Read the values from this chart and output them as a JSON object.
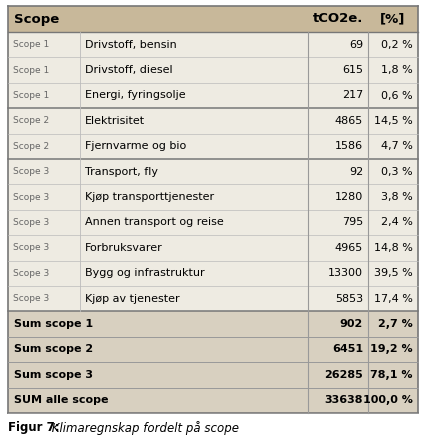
{
  "col_headers": [
    "Scope",
    "",
    "tCO2e.",
    "[%]"
  ],
  "rows": [
    {
      "scope": "Scope 1",
      "desc": "Drivstoff, bensin",
      "tco2e": "69",
      "pct": "0,2 %",
      "bold": false,
      "bg": "light"
    },
    {
      "scope": "Scope 1",
      "desc": "Drivstoff, diesel",
      "tco2e": "615",
      "pct": "1,8 %",
      "bold": false,
      "bg": "light"
    },
    {
      "scope": "Scope 1",
      "desc": "Energi, fyringsolje",
      "tco2e": "217",
      "pct": "0,6 %",
      "bold": false,
      "bg": "light"
    },
    {
      "scope": "Scope 2",
      "desc": "Elektrisitet",
      "tco2e": "4865",
      "pct": "14,5 %",
      "bold": false,
      "bg": "light"
    },
    {
      "scope": "Scope 2",
      "desc": "Fjernvarme og bio",
      "tco2e": "1586",
      "pct": "4,7 %",
      "bold": false,
      "bg": "light"
    },
    {
      "scope": "Scope 3",
      "desc": "Transport, fly",
      "tco2e": "92",
      "pct": "0,3 %",
      "bold": false,
      "bg": "light"
    },
    {
      "scope": "Scope 3",
      "desc": "Kjøp transporttjenester",
      "tco2e": "1280",
      "pct": "3,8 %",
      "bold": false,
      "bg": "light"
    },
    {
      "scope": "Scope 3",
      "desc": "Annen transport og reise",
      "tco2e": "795",
      "pct": "2,4 %",
      "bold": false,
      "bg": "light"
    },
    {
      "scope": "Scope 3",
      "desc": "Forbruksvarer",
      "tco2e": "4965",
      "pct": "14,8 %",
      "bold": false,
      "bg": "light"
    },
    {
      "scope": "Scope 3",
      "desc": "Bygg og infrastruktur",
      "tco2e": "13300",
      "pct": "39,5 %",
      "bold": false,
      "bg": "light"
    },
    {
      "scope": "Scope 3",
      "desc": "Kjøp av tjenester",
      "tco2e": "5853",
      "pct": "17,4 %",
      "bold": false,
      "bg": "light"
    },
    {
      "scope": "",
      "desc": "Sum scope 1",
      "tco2e": "902",
      "pct": "2,7 %",
      "bold": true,
      "bg": "dark"
    },
    {
      "scope": "",
      "desc": "Sum scope 2",
      "tco2e": "6451",
      "pct": "19,2 %",
      "bold": true,
      "bg": "dark"
    },
    {
      "scope": "",
      "desc": "Sum scope 3",
      "tco2e": "26285",
      "pct": "78,1 %",
      "bold": true,
      "bg": "dark"
    },
    {
      "scope": "",
      "desc": "SUM alle scope",
      "tco2e": "33638",
      "pct": "100,0 %",
      "bold": true,
      "bg": "dark"
    }
  ],
  "header_bg": "#c8b89a",
  "row_bg_light": "#eeebe2",
  "row_bg_dark": "#d8d0c0",
  "border_outer": "#777777",
  "border_inner": "#aaaaaa",
  "border_thick": "#777777",
  "text_scope_color": "#666666",
  "figure_caption_bold": "Figur 7:",
  "figure_caption_italic": " Klimaregnskap fordelt på scope",
  "scope_boundary_rows": [
    2,
    4,
    10
  ],
  "n_detail_rows": 11
}
